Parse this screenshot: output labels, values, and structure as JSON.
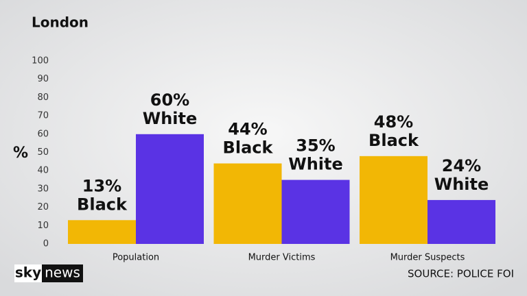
{
  "chart_data": {
    "type": "bar",
    "title": "London",
    "ylabel": "%",
    "categories": [
      "Population",
      "Murder Victims",
      "Murder Suspects"
    ],
    "series": [
      {
        "name": "Black",
        "color": "#f2b705",
        "values": [
          13,
          44,
          48
        ],
        "value_labels": [
          "13%",
          "44%",
          "48%"
        ]
      },
      {
        "name": "White",
        "color": "#5a33e4",
        "values": [
          60,
          35,
          24
        ],
        "value_labels": [
          "60%",
          "35%",
          "24%"
        ]
      }
    ],
    "ylim": [
      0,
      100
    ],
    "yticks": [
      0,
      10,
      20,
      30,
      40,
      50,
      60,
      70,
      80,
      90,
      100
    ],
    "grid": false,
    "source": "SOURCE: POLICE FOI",
    "logo": [
      "sky",
      "news"
    ]
  }
}
